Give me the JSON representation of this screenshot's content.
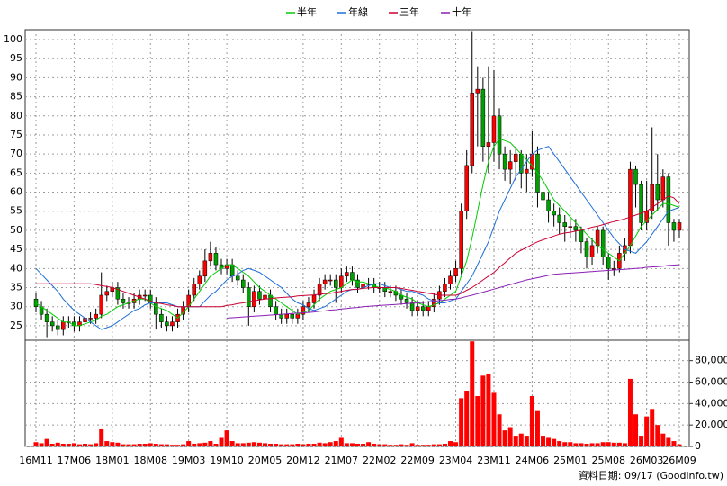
{
  "chart_data": {
    "type": "candlestick",
    "categories": [
      "16M11",
      null,
      null,
      null,
      null,
      null,
      null,
      "17M06",
      null,
      null,
      null,
      null,
      null,
      null,
      "18M01",
      null,
      null,
      null,
      null,
      null,
      null,
      "18M08",
      null,
      null,
      null,
      null,
      null,
      null,
      "19M03",
      null,
      null,
      null,
      null,
      null,
      null,
      "19M10",
      null,
      null,
      null,
      null,
      null,
      null,
      "20M05",
      null,
      null,
      null,
      null,
      null,
      null,
      "20M12",
      null,
      null,
      null,
      null,
      null,
      null,
      "21M07",
      null,
      null,
      null,
      null,
      null,
      null,
      "22M02",
      null,
      null,
      null,
      null,
      null,
      null,
      "22M09",
      null,
      null,
      null,
      null,
      null,
      null,
      "23M04",
      null,
      null,
      null,
      null,
      null,
      null,
      "23M11",
      null,
      null,
      null,
      null,
      null,
      null,
      "24M06",
      null,
      null,
      null,
      null,
      null,
      null,
      "25M01",
      null,
      null,
      null,
      null,
      null,
      null,
      "25M08",
      null,
      null,
      null,
      null,
      null,
      null,
      "26M03",
      null,
      null,
      null,
      null,
      null,
      "26M09"
    ],
    "open": [
      32,
      30,
      28,
      26,
      25,
      24,
      26,
      26,
      25,
      26,
      27,
      27,
      28,
      33,
      34,
      35,
      32,
      31,
      31,
      32,
      33,
      33,
      31,
      28,
      26,
      25,
      26,
      28,
      30,
      33,
      36,
      38,
      42,
      44,
      41,
      40,
      41,
      38,
      37,
      35,
      30,
      34,
      32,
      33,
      30,
      28,
      27,
      28,
      27,
      28,
      30,
      31,
      33,
      36,
      37,
      37,
      35,
      38,
      39,
      37,
      35,
      36,
      36,
      35,
      35,
      34,
      34,
      33,
      32,
      31,
      29,
      30,
      29,
      30,
      32,
      34,
      36,
      38,
      40,
      55,
      67,
      86,
      87,
      72,
      73,
      80,
      70,
      66,
      68,
      70,
      65,
      66,
      70,
      60,
      58,
      55,
      54,
      52,
      51,
      51,
      50,
      47,
      43,
      46,
      50,
      43,
      40,
      40,
      44,
      46,
      66,
      62,
      52,
      55,
      62,
      58,
      64,
      52,
      50
    ],
    "high": [
      33.5,
      31.5,
      29.5,
      27.5,
      26.5,
      27.5,
      27.5,
      27.5,
      27.5,
      28.5,
      28.5,
      29.5,
      39,
      35.5,
      36.5,
      36.5,
      33.5,
      32.5,
      33.5,
      34.5,
      34.5,
      34.5,
      32.5,
      29.5,
      27.5,
      27.5,
      29.5,
      31.5,
      34.5,
      37.5,
      39.5,
      45,
      47,
      45.5,
      42.5,
      42.5,
      42.5,
      39.5,
      38.5,
      36.5,
      35.5,
      35.5,
      34.5,
      34.5,
      31.5,
      29.5,
      29.5,
      29.5,
      29.5,
      31.5,
      32.5,
      34.5,
      37.5,
      38.5,
      38.5,
      38.5,
      40,
      40.5,
      40.5,
      38.5,
      37.5,
      37.5,
      37.5,
      36.5,
      36.5,
      35.5,
      35.5,
      34.5,
      33.5,
      32.5,
      31.5,
      31.5,
      31.5,
      33.5,
      35.5,
      37.5,
      39.5,
      42,
      57,
      71,
      102,
      93,
      90,
      93,
      92,
      82,
      72,
      71,
      72,
      71,
      70,
      76,
      72,
      63,
      60,
      57,
      56,
      54,
      53,
      53,
      51,
      48,
      48,
      51,
      51,
      44,
      42,
      46,
      48,
      68,
      67,
      63,
      63,
      77,
      70,
      66,
      65,
      53,
      53
    ],
    "low": [
      28.5,
      26.5,
      22,
      23.5,
      22.5,
      22.5,
      24.5,
      23.5,
      23.5,
      24.5,
      25.5,
      25.5,
      27,
      31.5,
      32.5,
      30.5,
      29.5,
      29.5,
      29.5,
      30.5,
      31.5,
      29.5,
      24,
      24.5,
      23.5,
      23.5,
      24.5,
      26.5,
      28.5,
      31.5,
      34.5,
      36.5,
      40.5,
      39.5,
      38.5,
      38.5,
      36.5,
      35.5,
      33.5,
      25,
      28.5,
      30.5,
      30.5,
      28.5,
      26.5,
      25.5,
      25.5,
      25.5,
      25.5,
      26.5,
      28.5,
      29.5,
      31.5,
      34.5,
      35.5,
      31,
      33.5,
      36.5,
      35.5,
      33.5,
      33.5,
      34.5,
      33.5,
      33.5,
      32.5,
      32.5,
      31.5,
      30.5,
      29.5,
      27.5,
      27.5,
      27.5,
      27.5,
      28.5,
      30.5,
      32.5,
      34.5,
      36.5,
      38.5,
      53,
      65,
      72,
      68,
      65,
      68,
      66,
      63,
      62,
      63,
      61,
      60,
      64,
      56,
      54,
      52,
      51,
      49,
      47,
      48,
      47,
      44,
      40,
      41,
      44,
      41,
      37,
      38,
      39,
      42,
      44,
      56,
      50,
      50,
      53,
      55,
      56,
      46,
      47,
      48
    ],
    "close": [
      30,
      28,
      26,
      25,
      24,
      26,
      26,
      25,
      26,
      27,
      27,
      28,
      33,
      34,
      35,
      32,
      31,
      31,
      32,
      33,
      33,
      31,
      28,
      26,
      25,
      26,
      28,
      30,
      33,
      36,
      38,
      42,
      44,
      41,
      40,
      41,
      38,
      37,
      35,
      30,
      34,
      32,
      33,
      30,
      28,
      27,
      28,
      27,
      28,
      30,
      31,
      33,
      36,
      37,
      37,
      35,
      38,
      39,
      37,
      35,
      36,
      36,
      35,
      35,
      34,
      34,
      33,
      32,
      31,
      29,
      30,
      29,
      30,
      32,
      34,
      36,
      38,
      40,
      55,
      67,
      86,
      87,
      72,
      73,
      80,
      70,
      66,
      68,
      70,
      65,
      66,
      70,
      60,
      58,
      55,
      54,
      52,
      51,
      51,
      50,
      47,
      43,
      46,
      50,
      43,
      40,
      40,
      44,
      46,
      66,
      62,
      52,
      55,
      62,
      58,
      64,
      52,
      50,
      52
    ],
    "volume": [
      4000,
      3000,
      7000,
      2500,
      3500,
      2500,
      2500,
      3000,
      2000,
      2500,
      2000,
      3000,
      16000,
      5000,
      4000,
      3500,
      2000,
      2000,
      2000,
      2500,
      2500,
      3000,
      2500,
      2000,
      2000,
      1500,
      1500,
      2000,
      5000,
      2500,
      3000,
      3500,
      5000,
      2500,
      8000,
      15000,
      5000,
      3000,
      3000,
      3500,
      4000,
      3500,
      3000,
      2500,
      2500,
      2000,
      2000,
      2000,
      2500,
      2000,
      2500,
      2500,
      3500,
      3000,
      4000,
      5000,
      8000,
      3000,
      3000,
      2500,
      2500,
      4000,
      2500,
      2000,
      2000,
      1500,
      1500,
      2000,
      1500,
      3000,
      1500,
      1500,
      1500,
      2000,
      2000,
      2500,
      5000,
      4000,
      45000,
      52000,
      98000,
      47000,
      66000,
      68000,
      50000,
      30000,
      15000,
      18000,
      10000,
      12000,
      10000,
      47000,
      33000,
      10000,
      8000,
      7000,
      5000,
      4000,
      4000,
      3000,
      3000,
      2500,
      3000,
      3000,
      4000,
      4000,
      3500,
      3500,
      3000,
      63000,
      30000,
      10000,
      28000,
      35000,
      20000,
      12000,
      8000,
      5000,
      2000
    ],
    "up_color": "#ff0000",
    "down_color": "#00a000",
    "volume_color": "#ff0000",
    "series": [
      {
        "name": "半年",
        "color": "#00cc00",
        "values": [
          31,
          30,
          29,
          28,
          27,
          26,
          26,
          25,
          25,
          25.5,
          26,
          26.5,
          27.5,
          28,
          29,
          30,
          30.5,
          31,
          31.5,
          32,
          32,
          31,
          30,
          29.5,
          29,
          28,
          27,
          28.5,
          30,
          32,
          34,
          36,
          38,
          39,
          40,
          41,
          41,
          40,
          39,
          38,
          36.5,
          35,
          34,
          33,
          32,
          31,
          30,
          29,
          28,
          28.5,
          29,
          30.5,
          32,
          33,
          34,
          34.5,
          35,
          36,
          37,
          36.5,
          36.5,
          36,
          35.5,
          35,
          35,
          34.5,
          34,
          33,
          32.5,
          32,
          31,
          30.5,
          30,
          30.5,
          31,
          32,
          33,
          34,
          38,
          42,
          48,
          55,
          62,
          68,
          72,
          74,
          73.5,
          73,
          71.5,
          70,
          68.5,
          67,
          65,
          63,
          60.5,
          58,
          56.5,
          55,
          53.5,
          52,
          50.5,
          49,
          47.5,
          46,
          45,
          44,
          43,
          42,
          44,
          46,
          48.5,
          51,
          52.5,
          54,
          55.5,
          57,
          57,
          56.5,
          56
        ]
      },
      {
        "name": "年線",
        "color": "#1e6fd9",
        "values": [
          40,
          38.5,
          37,
          35.5,
          34,
          32,
          30.5,
          29,
          28,
          27,
          26,
          25,
          24,
          24.5,
          25,
          26,
          27,
          28,
          29,
          29.5,
          30.5,
          31,
          31,
          31,
          31,
          30.5,
          30,
          30,
          30,
          30,
          30,
          31.5,
          33,
          34,
          35.5,
          37,
          38,
          38.5,
          39.5,
          40,
          39.5,
          39,
          38,
          37,
          36,
          35,
          33.5,
          32,
          31,
          30.5,
          29.5,
          29,
          29.5,
          30,
          31,
          32,
          33,
          34,
          34.5,
          34.5,
          35,
          35.5,
          36,
          36,
          35.5,
          35,
          35,
          34.5,
          34,
          34,
          33.5,
          33,
          32,
          31.5,
          31,
          31,
          31.5,
          32,
          34,
          36,
          38,
          41,
          44,
          47,
          51,
          55,
          58,
          61,
          64,
          66,
          68,
          70,
          71,
          71.5,
          72,
          70,
          68,
          66,
          64,
          62,
          60,
          58,
          56,
          54,
          52,
          50,
          48,
          46.5,
          45,
          44.5,
          44,
          45.5,
          47,
          49,
          51,
          53,
          55,
          55.5,
          56
        ]
      },
      {
        "name": "三年",
        "color": "#cc0033",
        "values": [
          36,
          36,
          36,
          36,
          36,
          36,
          36,
          36,
          36,
          36,
          36,
          35.8,
          35.5,
          35.3,
          35,
          34.5,
          34,
          33.5,
          33,
          32.5,
          32,
          31.5,
          31,
          30.8,
          30.5,
          30.3,
          30,
          30,
          30,
          30,
          30,
          30,
          30,
          30,
          30,
          30.3,
          30.5,
          30.8,
          31,
          31.3,
          31.5,
          31.8,
          32,
          32.1,
          32.3,
          32.4,
          32.5,
          32.6,
          32.8,
          32.9,
          33,
          33.1,
          33.3,
          33.4,
          33.5,
          33.8,
          34,
          34.3,
          34.5,
          34.6,
          34.8,
          34.9,
          35,
          35,
          35,
          35,
          35,
          34.8,
          34.5,
          34.3,
          34,
          33.8,
          33.5,
          33.3,
          33,
          33,
          33,
          33,
          33.5,
          34.3,
          35,
          36,
          37,
          38,
          39,
          40.3,
          41.5,
          42.8,
          44,
          44.8,
          45.5,
          46.3,
          47,
          47.5,
          48,
          48.5,
          49,
          49.3,
          49.5,
          49.8,
          50,
          50.4,
          50.8,
          51.1,
          51.5,
          51.9,
          52.3,
          52.6,
          53,
          53.5,
          54,
          54.5,
          55,
          56,
          57,
          58,
          59,
          58.5,
          57
        ]
      },
      {
        "name": "十年",
        "color": "#8a1fb5",
        "values": [
          null,
          null,
          null,
          null,
          null,
          null,
          null,
          null,
          null,
          null,
          null,
          null,
          null,
          null,
          null,
          null,
          null,
          null,
          null,
          null,
          null,
          null,
          null,
          null,
          null,
          null,
          null,
          null,
          null,
          null,
          null,
          null,
          null,
          null,
          null,
          27,
          27.1,
          27.2,
          27.3,
          27.4,
          27.5,
          27.6,
          27.7,
          27.8,
          27.9,
          28,
          28.1,
          28.2,
          28.3,
          28.4,
          28.5,
          28.6,
          28.8,
          28.9,
          29.1,
          29.2,
          29.4,
          29.5,
          29.7,
          29.8,
          30,
          30.1,
          30.2,
          30.3,
          30.4,
          30.5,
          30.6,
          30.7,
          30.8,
          30.9,
          31,
          31.1,
          31.3,
          31.4,
          31.6,
          31.7,
          31.9,
          32,
          32.3,
          32.7,
          33,
          33.4,
          33.8,
          34.2,
          34.6,
          35,
          35.4,
          35.8,
          36.2,
          36.6,
          37,
          37.3,
          37.6,
          37.9,
          38.2,
          38.5,
          38.6,
          38.7,
          38.8,
          38.9,
          39,
          39.1,
          39.2,
          39.3,
          39.4,
          39.5,
          39.6,
          39.7,
          39.8,
          39.9,
          40,
          40.1,
          40.3,
          40.4,
          40.5,
          40.6,
          40.8,
          40.9,
          41
        ]
      }
    ],
    "ylim": [
      21.2,
      102.6
    ],
    "yticks": [
      25,
      30,
      35,
      40,
      45,
      50,
      55,
      60,
      65,
      70,
      75,
      80,
      85,
      90,
      95,
      100
    ],
    "volume_ylim": [
      0,
      99000
    ],
    "volume_yticks": [
      0,
      {
        "value": 20000,
        "label": "20,000"
      },
      {
        "value": 40000,
        "label": "40,000"
      },
      {
        "value": 60000,
        "label": "60,000"
      },
      {
        "value": 80000,
        "label": "80,000"
      }
    ],
    "grid": true,
    "legend": "top",
    "footnote": "資料日期: 09/17  (Goodinfo.tw)"
  }
}
